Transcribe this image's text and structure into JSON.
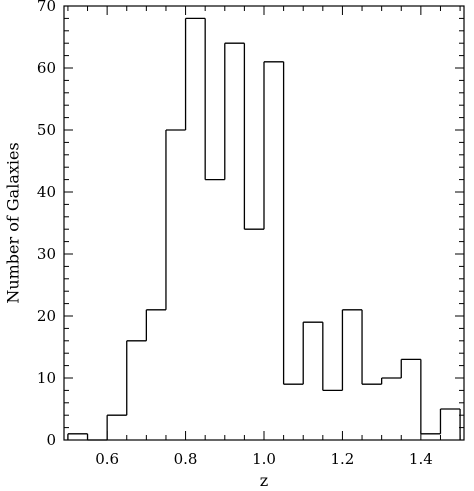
{
  "chart_data": {
    "type": "histogram",
    "title": "",
    "xlabel": "z",
    "ylabel": "Number of Galaxies",
    "xlim": [
      0.49,
      1.51
    ],
    "ylim": [
      0,
      70
    ],
    "xticks": [
      0.6,
      0.8,
      1.0,
      1.2,
      1.4
    ],
    "xtick_labels": [
      "0.6",
      "0.8",
      "1.0",
      "1.2",
      "1.4"
    ],
    "yticks": [
      0,
      10,
      20,
      30,
      40,
      50,
      60,
      70
    ],
    "ytick_labels": [
      "0",
      "10",
      "20",
      "30",
      "40",
      "50",
      "60",
      "70"
    ],
    "grid": false,
    "legend": "none",
    "bin_width": 0.05,
    "bins": [
      {
        "x_start": 0.5,
        "x_end": 0.55,
        "value": 1
      },
      {
        "x_start": 0.55,
        "x_end": 0.6,
        "value": 0
      },
      {
        "x_start": 0.6,
        "x_end": 0.65,
        "value": 4
      },
      {
        "x_start": 0.65,
        "x_end": 0.7,
        "value": 16
      },
      {
        "x_start": 0.7,
        "x_end": 0.75,
        "value": 21
      },
      {
        "x_start": 0.75,
        "x_end": 0.8,
        "value": 50
      },
      {
        "x_start": 0.8,
        "x_end": 0.85,
        "value": 68
      },
      {
        "x_start": 0.85,
        "x_end": 0.9,
        "value": 42
      },
      {
        "x_start": 0.9,
        "x_end": 0.95,
        "value": 64
      },
      {
        "x_start": 0.95,
        "x_end": 1.0,
        "value": 34
      },
      {
        "x_start": 1.0,
        "x_end": 1.05,
        "value": 61
      },
      {
        "x_start": 1.05,
        "x_end": 1.1,
        "value": 9
      },
      {
        "x_start": 1.1,
        "x_end": 1.15,
        "value": 19
      },
      {
        "x_start": 1.15,
        "x_end": 1.2,
        "value": 8
      },
      {
        "x_start": 1.2,
        "x_end": 1.25,
        "value": 21
      },
      {
        "x_start": 1.25,
        "x_end": 1.3,
        "value": 9
      },
      {
        "x_start": 1.3,
        "x_end": 1.35,
        "value": 10
      },
      {
        "x_start": 1.35,
        "x_end": 1.4,
        "value": 13
      },
      {
        "x_start": 1.4,
        "x_end": 1.45,
        "value": 1
      },
      {
        "x_start": 1.45,
        "x_end": 1.5,
        "value": 5
      }
    ],
    "line_color": "#000000"
  }
}
